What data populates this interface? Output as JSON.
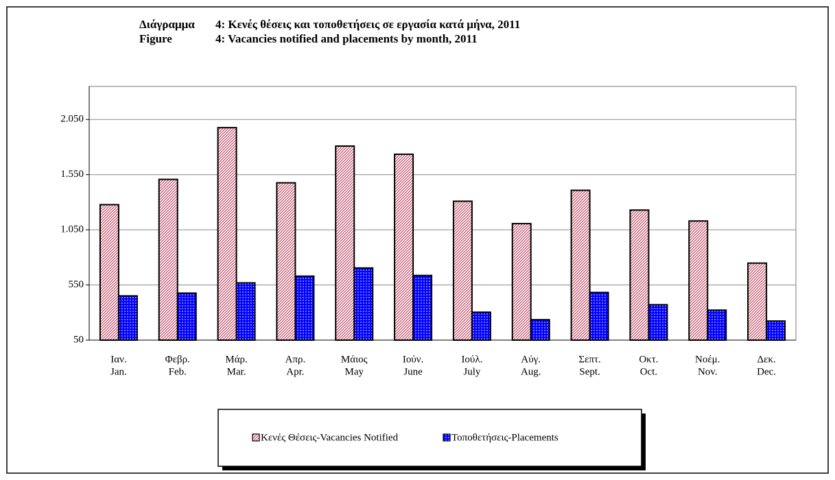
{
  "chart_data": {
    "type": "bar",
    "title": [
      [
        "Διάγραμμα",
        "4: Κενές θέσεις και τοποθετήσεις σε εργασία κατά μήνα, 2011"
      ],
      [
        "Figure",
        "4: Vacancies notified and placements by month, 2011"
      ]
    ],
    "categories": [
      [
        "Ιαν.",
        "Jan."
      ],
      [
        "Φεβρ.",
        "Feb."
      ],
      [
        "Μάρ.",
        "Mar."
      ],
      [
        "Απρ.",
        "Apr."
      ],
      [
        "Μάιος",
        "May"
      ],
      [
        "Ιούν.",
        "June"
      ],
      [
        "Ιούλ.",
        "July"
      ],
      [
        "Αύγ.",
        "Aug."
      ],
      [
        "Σεπτ.",
        "Sept."
      ],
      [
        "Οκτ.",
        "Oct."
      ],
      [
        "Νοέμ.",
        "Nov."
      ],
      [
        "Δεκ.",
        "Dec."
      ]
    ],
    "series": [
      {
        "name": "Κενές Θέσεις-Vacancies Notified",
        "color": "#c0506a",
        "pattern": "hatch",
        "values": [
          1278,
          1507,
          1976,
          1476,
          1809,
          1735,
          1309,
          1106,
          1408,
          1229,
          1130,
          748
        ]
      },
      {
        "name": "Τοποθετήσεις-Placements",
        "color": "#0000ff",
        "pattern": "dots",
        "values": [
          451,
          476,
          569,
          630,
          704,
          636,
          303,
          235,
          482,
          371,
          322,
          223
        ]
      }
    ],
    "ylim": [
      50,
      2350
    ],
    "yticks": [
      50,
      550,
      {
        "value": 1050,
        "label": "1.050"
      },
      {
        "value": 1550,
        "label": "1.550"
      },
      {
        "value": 2050,
        "label": "2.050"
      }
    ],
    "grid": true,
    "legend": "bottom"
  }
}
